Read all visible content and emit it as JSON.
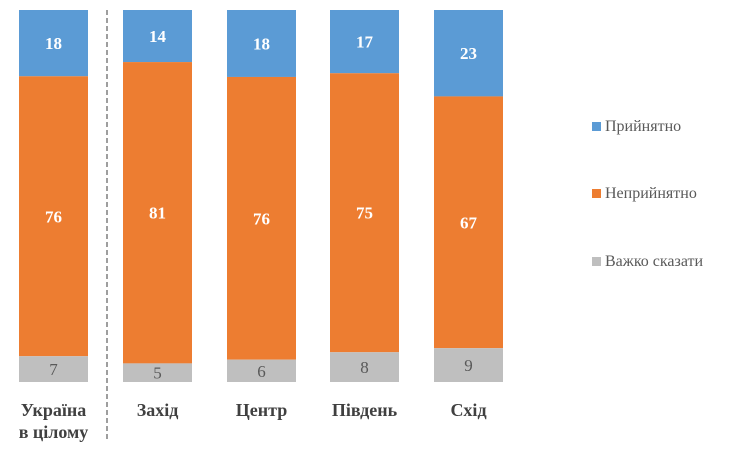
{
  "chart_data": {
    "type": "bar",
    "stacked": true,
    "categories": [
      [
        "Україна",
        "в цілому"
      ],
      [
        "Захід"
      ],
      [
        "Центр"
      ],
      [
        "Південь"
      ],
      [
        "Схід"
      ]
    ],
    "series": [
      {
        "name": "Прийнятно",
        "color": "#5B9BD5",
        "values": [
          18,
          14,
          18,
          17,
          23
        ]
      },
      {
        "name": "Неприйнятно",
        "color": "#ED7D31",
        "values": [
          76,
          81,
          76,
          75,
          67
        ]
      },
      {
        "name": "Важко сказати",
        "color": "#BFBFBF",
        "values": [
          7,
          5,
          6,
          8,
          9
        ]
      }
    ],
    "legend_position": "right",
    "grid": false,
    "separator_after_first": true
  }
}
